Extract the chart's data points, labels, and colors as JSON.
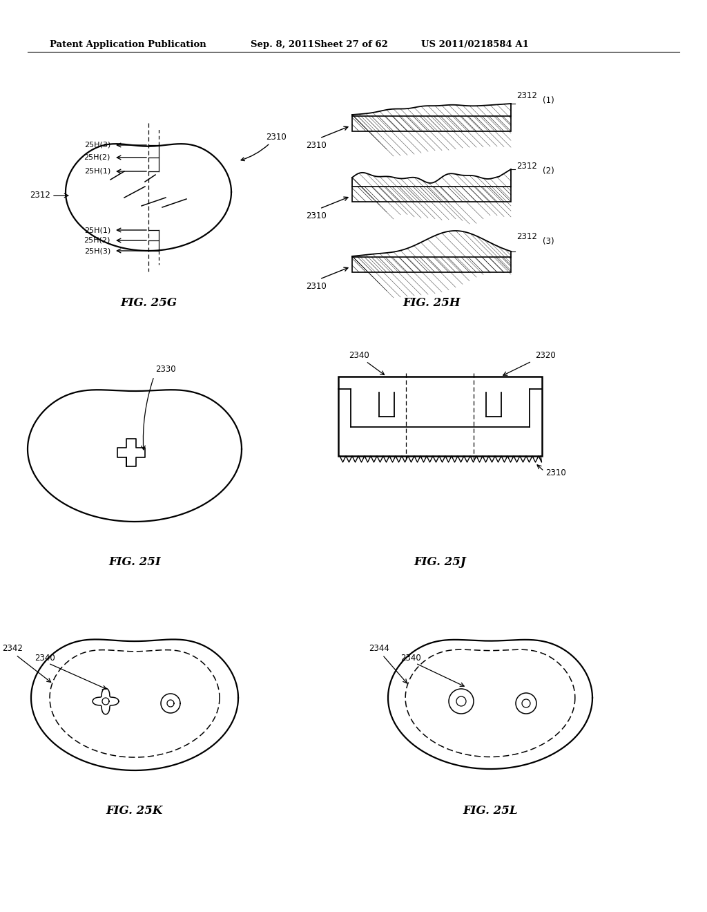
{
  "header_left": "Patent Application Publication",
  "header_date": "Sep. 8, 2011",
  "header_sheet": "Sheet 27 of 62",
  "header_right": "US 2011/0218584 A1",
  "bg_color": "#ffffff",
  "text_color": "#000000"
}
